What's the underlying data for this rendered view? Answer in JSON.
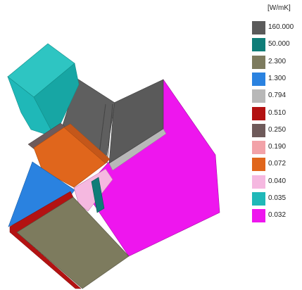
{
  "legend": {
    "unit": "[W/mK]",
    "items": [
      {
        "value": "160.000",
        "color": "#5a5a5a"
      },
      {
        "value": "50.000",
        "color": "#0f7d78"
      },
      {
        "value": "2.300",
        "color": "#7d7b5e"
      },
      {
        "value": "1.300",
        "color": "#2a82e0"
      },
      {
        "value": "0.794",
        "color": "#b8b8b8"
      },
      {
        "value": "0.510",
        "color": "#b31212"
      },
      {
        "value": "0.250",
        "color": "#6e5a5a"
      },
      {
        "value": "0.190",
        "color": "#f2a2a8"
      },
      {
        "value": "0.072",
        "color": "#e0661c"
      },
      {
        "value": "0.040",
        "color": "#f5b8e0"
      },
      {
        "value": "0.035",
        "color": "#1fb8b8"
      },
      {
        "value": "0.032",
        "color": "#ee16ee"
      }
    ]
  },
  "palette": {
    "grey_dark": "#5a5a5a",
    "grey_light": "#b8b8b8",
    "teal": "#1fb8b8",
    "orange": "#e0661c",
    "magenta": "#ee16ee",
    "olive": "#7d7b5e",
    "blue": "#2a82e0",
    "red": "#b31212",
    "pink": "#f5b8e0",
    "deep_teal": "#0f7d78"
  }
}
